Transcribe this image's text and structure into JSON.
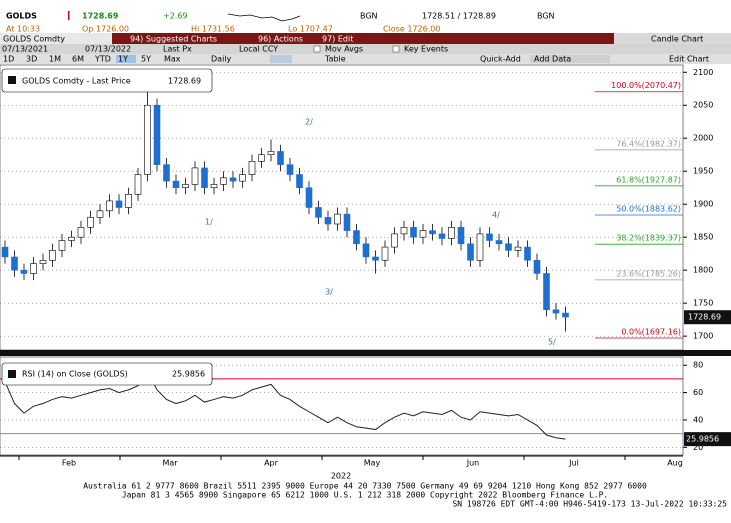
{
  "header": {
    "ticker": "GOLDS",
    "price": "1728.69",
    "change": "+2.69",
    "hi": "Hi 1731.56",
    "lo": "Lo 1707.47",
    "source1": "BGN",
    "bid_ask": "1728.51 / 1728.89",
    "source2": "BGN",
    "time": "At 10:33",
    "open": "Op 1726.00",
    "close": "Close 1726.00"
  },
  "toolbar": {
    "security": "GOLDS Comdty",
    "menu": [
      "94) Suggested Charts",
      "96) Actions",
      "97) Edit"
    ],
    "view": "Candle Chart",
    "start": "07/13/2021",
    "end": "07/13/2022",
    "field": "Last Px",
    "currency": "Local CCY",
    "options": [
      "Mov Avgs",
      "Key Events"
    ],
    "ranges": [
      "1D",
      "3D",
      "1M",
      "6M",
      "YTD",
      "1Y",
      "5Y",
      "Max"
    ],
    "period": "Daily",
    "table": "Table",
    "quick_add": "Quick-Add",
    "add_data": "Add Data",
    "edit_chart": "Edit Chart"
  },
  "chart_data": [
    {
      "type": "candlestick",
      "legend": "GOLDS Comdty - Last Price",
      "last_value": 1728.69,
      "up_color": "#ffffff",
      "down_color": "#1f6fd0",
      "open": [
        1835,
        1820,
        1800,
        1795,
        1810,
        1815,
        1830,
        1845,
        1850,
        1865,
        1880,
        1890,
        1905,
        1895,
        1915,
        1945,
        2050,
        1960,
        1935,
        1925,
        1930,
        1955,
        1925,
        1930,
        1940,
        1935,
        1945,
        1965,
        1975,
        1980,
        1960,
        1945,
        1925,
        1895,
        1880,
        1870,
        1885,
        1860,
        1840,
        1820,
        1815,
        1835,
        1855,
        1865,
        1850,
        1860,
        1855,
        1848,
        1865,
        1840,
        1815,
        1855,
        1845,
        1840,
        1830,
        1835,
        1815,
        1795,
        1740,
        1735
      ],
      "high": [
        1845,
        1830,
        1810,
        1820,
        1825,
        1840,
        1855,
        1860,
        1875,
        1890,
        1900,
        1915,
        1915,
        1925,
        1955,
        2070,
        2060,
        1970,
        1945,
        1940,
        1965,
        1965,
        1940,
        1950,
        1950,
        1955,
        1975,
        1985,
        1998,
        1990,
        1970,
        1955,
        1935,
        1905,
        1890,
        1895,
        1895,
        1870,
        1850,
        1830,
        1845,
        1865,
        1875,
        1875,
        1870,
        1870,
        1865,
        1875,
        1875,
        1850,
        1865,
        1865,
        1855,
        1850,
        1845,
        1845,
        1825,
        1805,
        1750,
        1745
      ],
      "low": [
        1810,
        1790,
        1785,
        1785,
        1800,
        1805,
        1820,
        1835,
        1840,
        1855,
        1870,
        1880,
        1885,
        1885,
        1905,
        1935,
        1950,
        1925,
        1915,
        1915,
        1920,
        1915,
        1915,
        1920,
        1925,
        1925,
        1935,
        1955,
        1965,
        1950,
        1935,
        1915,
        1885,
        1870,
        1860,
        1860,
        1850,
        1830,
        1810,
        1795,
        1805,
        1825,
        1845,
        1840,
        1840,
        1845,
        1838,
        1838,
        1830,
        1805,
        1805,
        1835,
        1830,
        1820,
        1820,
        1805,
        1785,
        1730,
        1725,
        1707
      ],
      "close": [
        1820,
        1800,
        1795,
        1810,
        1815,
        1830,
        1845,
        1850,
        1865,
        1880,
        1890,
        1905,
        1895,
        1915,
        1945,
        2050,
        1960,
        1935,
        1925,
        1930,
        1955,
        1925,
        1930,
        1940,
        1935,
        1945,
        1965,
        1975,
        1980,
        1960,
        1945,
        1925,
        1895,
        1880,
        1870,
        1885,
        1860,
        1840,
        1820,
        1815,
        1835,
        1855,
        1865,
        1850,
        1860,
        1855,
        1848,
        1865,
        1840,
        1815,
        1855,
        1845,
        1840,
        1830,
        1835,
        1815,
        1795,
        1740,
        1735,
        1729
      ],
      "ylim": [
        1679,
        2111
      ],
      "yticks": [
        1700,
        1750,
        1800,
        1850,
        1900,
        1950,
        2000,
        2050,
        2100
      ],
      "grid": true,
      "fib_levels": [
        {
          "label": "100.0%(2070.47)",
          "value": 2070.47,
          "color": "#d0021b"
        },
        {
          "label": "76.4%(1982.37)",
          "value": 1982.37,
          "color": "#999999"
        },
        {
          "label": "61.8%(1927.87)",
          "value": 1927.87,
          "color": "#2ca02c"
        },
        {
          "label": "50.0%(1883.62)",
          "value": 1883.62,
          "color": "#1f6fd0"
        },
        {
          "label": "38.2%(1839.37)",
          "value": 1839.37,
          "color": "#2ca02c"
        },
        {
          "label": "23.6%(1785.26)",
          "value": 1785.26,
          "color": "#999999"
        },
        {
          "label": "0.0%(1697.16)",
          "value": 1697.16,
          "color": "#d0021b"
        }
      ],
      "wave_labels": [
        "1/",
        "2/",
        "3/",
        "4/",
        "5/"
      ]
    },
    {
      "type": "line",
      "legend": "RSI (14)  on Close (GOLDS)",
      "last_value": 25.9856,
      "color": "#222222",
      "values": [
        68,
        52,
        45,
        50,
        52,
        55,
        57,
        56,
        58,
        60,
        62,
        63,
        60,
        62,
        65,
        76,
        62,
        55,
        52,
        54,
        58,
        53,
        55,
        57,
        56,
        58,
        62,
        64,
        66,
        58,
        55,
        50,
        46,
        42,
        38,
        42,
        38,
        35,
        34,
        33,
        38,
        42,
        45,
        43,
        46,
        45,
        44,
        47,
        42,
        40,
        46,
        45,
        44,
        43,
        44,
        40,
        36,
        29,
        27,
        26
      ],
      "ylim": [
        14.4,
        86
      ],
      "yticks": [
        20,
        40,
        60,
        80
      ],
      "grid": true,
      "reference_lines": [
        {
          "value": 70,
          "color": "#d0021b"
        },
        {
          "value": 30,
          "color": "#33cc33"
        }
      ]
    }
  ],
  "x_axis": {
    "months": [
      "Feb",
      "Mar",
      "Apr",
      "May",
      "Jun",
      "Jul",
      "Aug"
    ],
    "year": "2022"
  },
  "footer": [
    "Australia 61 2 9777 8600 Brazil 5511 2395 9000 Europe 44 20 7330 7500 Germany 49 69 9204 1210 Hong Kong 852 2977 6000",
    "Japan 81 3 4565 8900     Singapore 65 6212 1000     U.S. 1 212 318 2000         Copyright 2022 Bloomberg Finance L.P.",
    "SN 198726 EDT  GMT-4:00 H946-5419-173 13-Jul-2022 10:33:25"
  ]
}
